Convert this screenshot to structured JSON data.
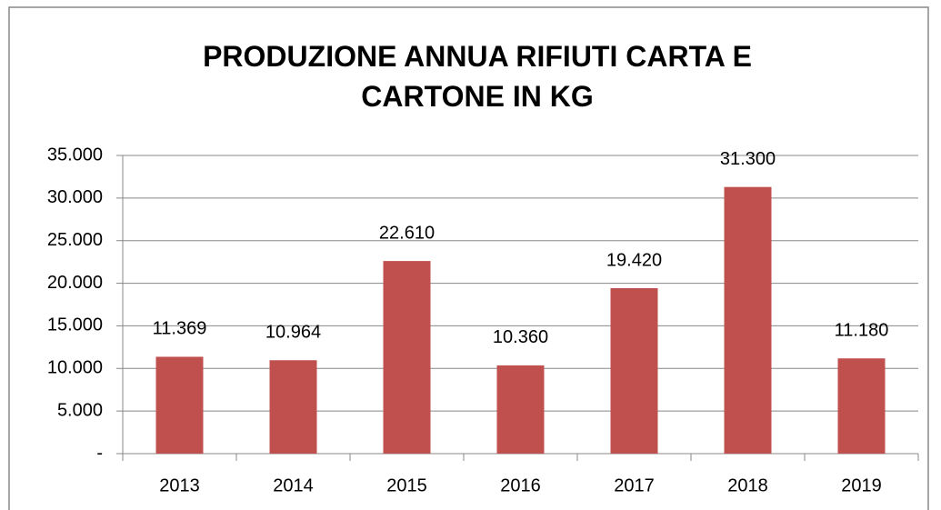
{
  "chart_data": {
    "type": "bar",
    "title": "PRODUZIONE ANNUA RIFIUTI CARTA E CARTONE IN KG",
    "categories": [
      "2013",
      "2014",
      "2015",
      "2016",
      "2017",
      "2018",
      "2019"
    ],
    "values": [
      11369,
      10964,
      22610,
      10360,
      19420,
      31300,
      11180
    ],
    "value_labels": [
      "11.369",
      "10.964",
      "22.610",
      "10.360",
      "19.420",
      "31.300",
      "11.180"
    ],
    "color": "#c0504d",
    "ylim": [
      0,
      35000
    ],
    "yticks": [
      {
        "value": 0,
        "label": "-"
      },
      {
        "value": 5000,
        "label": "5.000"
      },
      {
        "value": 10000,
        "label": "10.000"
      },
      {
        "value": 15000,
        "label": "15.000"
      },
      {
        "value": 20000,
        "label": "20.000"
      },
      {
        "value": 25000,
        "label": "25.000"
      },
      {
        "value": 30000,
        "label": "30.000"
      },
      {
        "value": 35000,
        "label": "35.000"
      }
    ],
    "grid": true
  }
}
